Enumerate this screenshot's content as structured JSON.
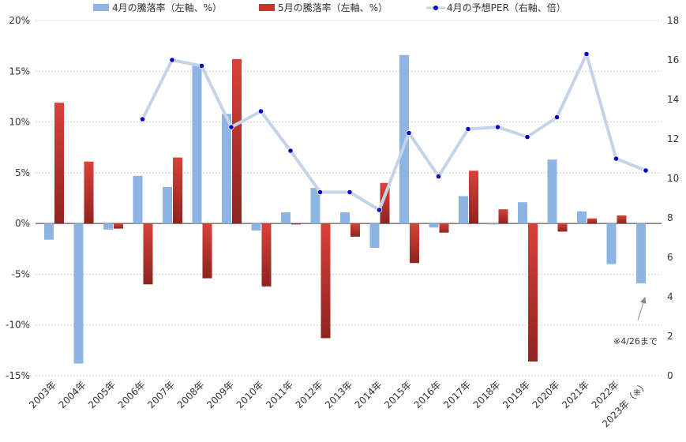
{
  "legend": {
    "april": "4月の騰落率（左軸、%）",
    "may": "5月の騰落率（左軸、%）",
    "per": "4月の予想PER（右軸、倍）"
  },
  "annotation": "※4/26まで",
  "colors": {
    "april": "#8db4e2",
    "may": "#c0392b",
    "per_line": "#c5d3e8",
    "per_marker": "#0000cc"
  },
  "chart_data": {
    "type": "bar",
    "categories": [
      "2003年",
      "2004年",
      "2005年",
      "2006年",
      "2007年",
      "2008年",
      "2009年",
      "2010年",
      "2011年",
      "2012年",
      "2013年",
      "2014年",
      "2015年",
      "2016年",
      "2017年",
      "2018年",
      "2019年",
      "2020年",
      "2021年",
      "2022年",
      "2023年（※）"
    ],
    "series": [
      {
        "name": "4月の騰落率（左軸、%）",
        "type": "bar",
        "axis": "left",
        "values": [
          -1.6,
          -13.8,
          -0.6,
          4.7,
          3.6,
          15.6,
          10.8,
          -0.7,
          1.1,
          3.5,
          1.1,
          -2.4,
          16.6,
          -0.4,
          2.7,
          -0.1,
          2.1,
          6.3,
          1.2,
          -4.0,
          -5.9
        ]
      },
      {
        "name": "5月の騰落率（左軸、%）",
        "type": "bar",
        "axis": "left",
        "values": [
          11.9,
          6.1,
          -0.5,
          -6.0,
          6.5,
          -5.4,
          16.2,
          -6.2,
          -0.1,
          -11.3,
          -1.3,
          4.0,
          -3.9,
          -0.9,
          5.2,
          1.4,
          -13.6,
          -0.8,
          0.5,
          0.8,
          null
        ]
      },
      {
        "name": "4月の予想PER（右軸、倍）",
        "type": "line",
        "axis": "right",
        "values": [
          null,
          null,
          null,
          13.0,
          16.0,
          15.7,
          12.6,
          13.4,
          11.4,
          9.3,
          9.3,
          8.4,
          12.3,
          10.1,
          12.5,
          12.6,
          12.1,
          13.1,
          16.3,
          11.0,
          10.4
        ]
      }
    ],
    "left_axis": {
      "ylim": [
        -15,
        20
      ],
      "ticks": [
        "-15%",
        "-10%",
        "-5%",
        "0%",
        "5%",
        "10%",
        "15%",
        "20%"
      ],
      "tick_values": [
        -15,
        -10,
        -5,
        0,
        5,
        10,
        15,
        20
      ]
    },
    "right_axis": {
      "ylim": [
        0,
        18
      ],
      "ticks": [
        "0",
        "2",
        "4",
        "6",
        "8",
        "10",
        "12",
        "14",
        "16",
        "18"
      ],
      "tick_values": [
        0,
        2,
        4,
        6,
        8,
        10,
        12,
        14,
        16,
        18
      ]
    },
    "legend_position": "top",
    "grid": true
  }
}
